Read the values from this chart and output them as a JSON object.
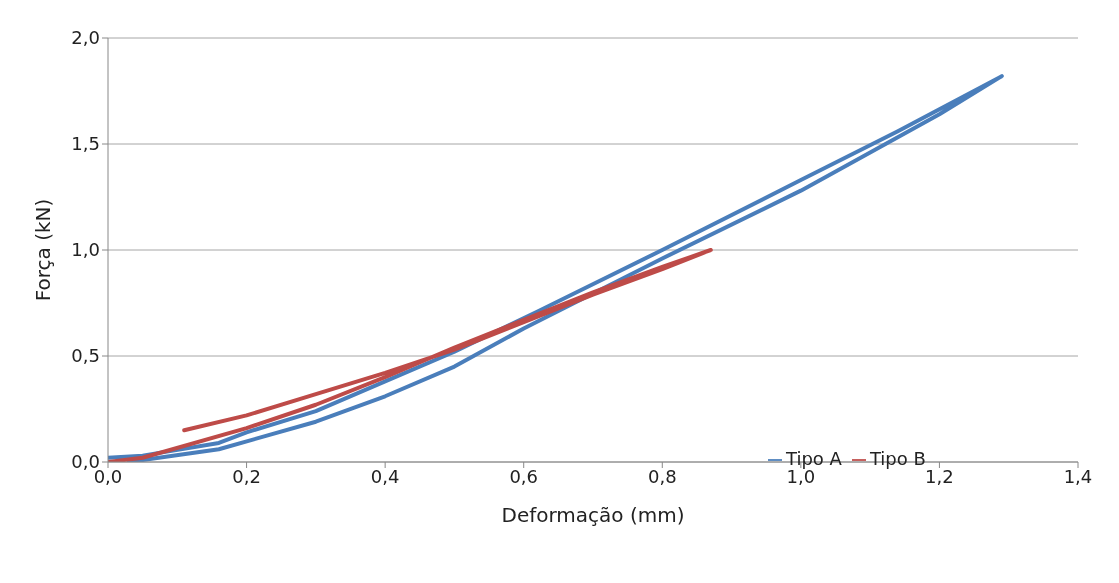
{
  "chart_data": {
    "type": "line",
    "xlabel": "Deformação (mm)",
    "ylabel": "Força (kN)",
    "xlim": [
      0,
      1.4
    ],
    "xticks": [
      {
        "value": 0,
        "label": "0,0"
      },
      {
        "value": 0.2,
        "label": "0,2"
      },
      {
        "value": 0.4,
        "label": "0,4"
      },
      {
        "value": 0.6,
        "label": "0,6"
      },
      {
        "value": 0.8,
        "label": "0,8"
      },
      {
        "value": 1.0,
        "label": "1,0"
      },
      {
        "value": 1.2,
        "label": "1,2"
      },
      {
        "value": 1.4,
        "label": "1,4"
      }
    ],
    "ylim": [
      0,
      2
    ],
    "yticks": [
      {
        "value": 0,
        "label": "0,0"
      },
      {
        "value": 0.5,
        "label": "0,5"
      },
      {
        "value": 1.0,
        "label": "1,0"
      },
      {
        "value": 1.5,
        "label": "1,5"
      },
      {
        "value": 2.0,
        "label": "2,0"
      }
    ],
    "grid": "y",
    "legend": "bottom right",
    "marker": "none",
    "line_style": "solid",
    "series": [
      {
        "name": "Tipo A",
        "color": "#4a7ebb",
        "x": [
          0.03,
          0.16,
          0.3,
          0.4,
          0.5,
          0.6,
          0.8,
          1.0,
          1.2,
          1.29,
          1.14,
          1.0,
          0.8,
          0.62,
          0.5,
          0.4,
          0.3,
          0.2,
          0.16,
          0.05,
          0.0
        ],
        "values": [
          0.0,
          0.06,
          0.19,
          0.31,
          0.45,
          0.63,
          0.96,
          1.28,
          1.64,
          1.82,
          1.56,
          1.33,
          1.0,
          0.71,
          0.52,
          0.38,
          0.24,
          0.14,
          0.09,
          0.03,
          0.02
        ]
      },
      {
        "name": "Tipo B",
        "color": "#be4b48",
        "x": [
          0.0,
          0.05,
          0.2,
          0.3,
          0.4,
          0.5,
          0.6,
          0.7,
          0.8,
          0.87,
          0.8,
          0.7,
          0.6,
          0.5,
          0.4,
          0.3,
          0.2,
          0.11
        ],
        "values": [
          0.0,
          0.02,
          0.16,
          0.27,
          0.4,
          0.54,
          0.67,
          0.8,
          0.92,
          1.0,
          0.91,
          0.79,
          0.66,
          0.53,
          0.42,
          0.32,
          0.22,
          0.15
        ]
      }
    ]
  }
}
